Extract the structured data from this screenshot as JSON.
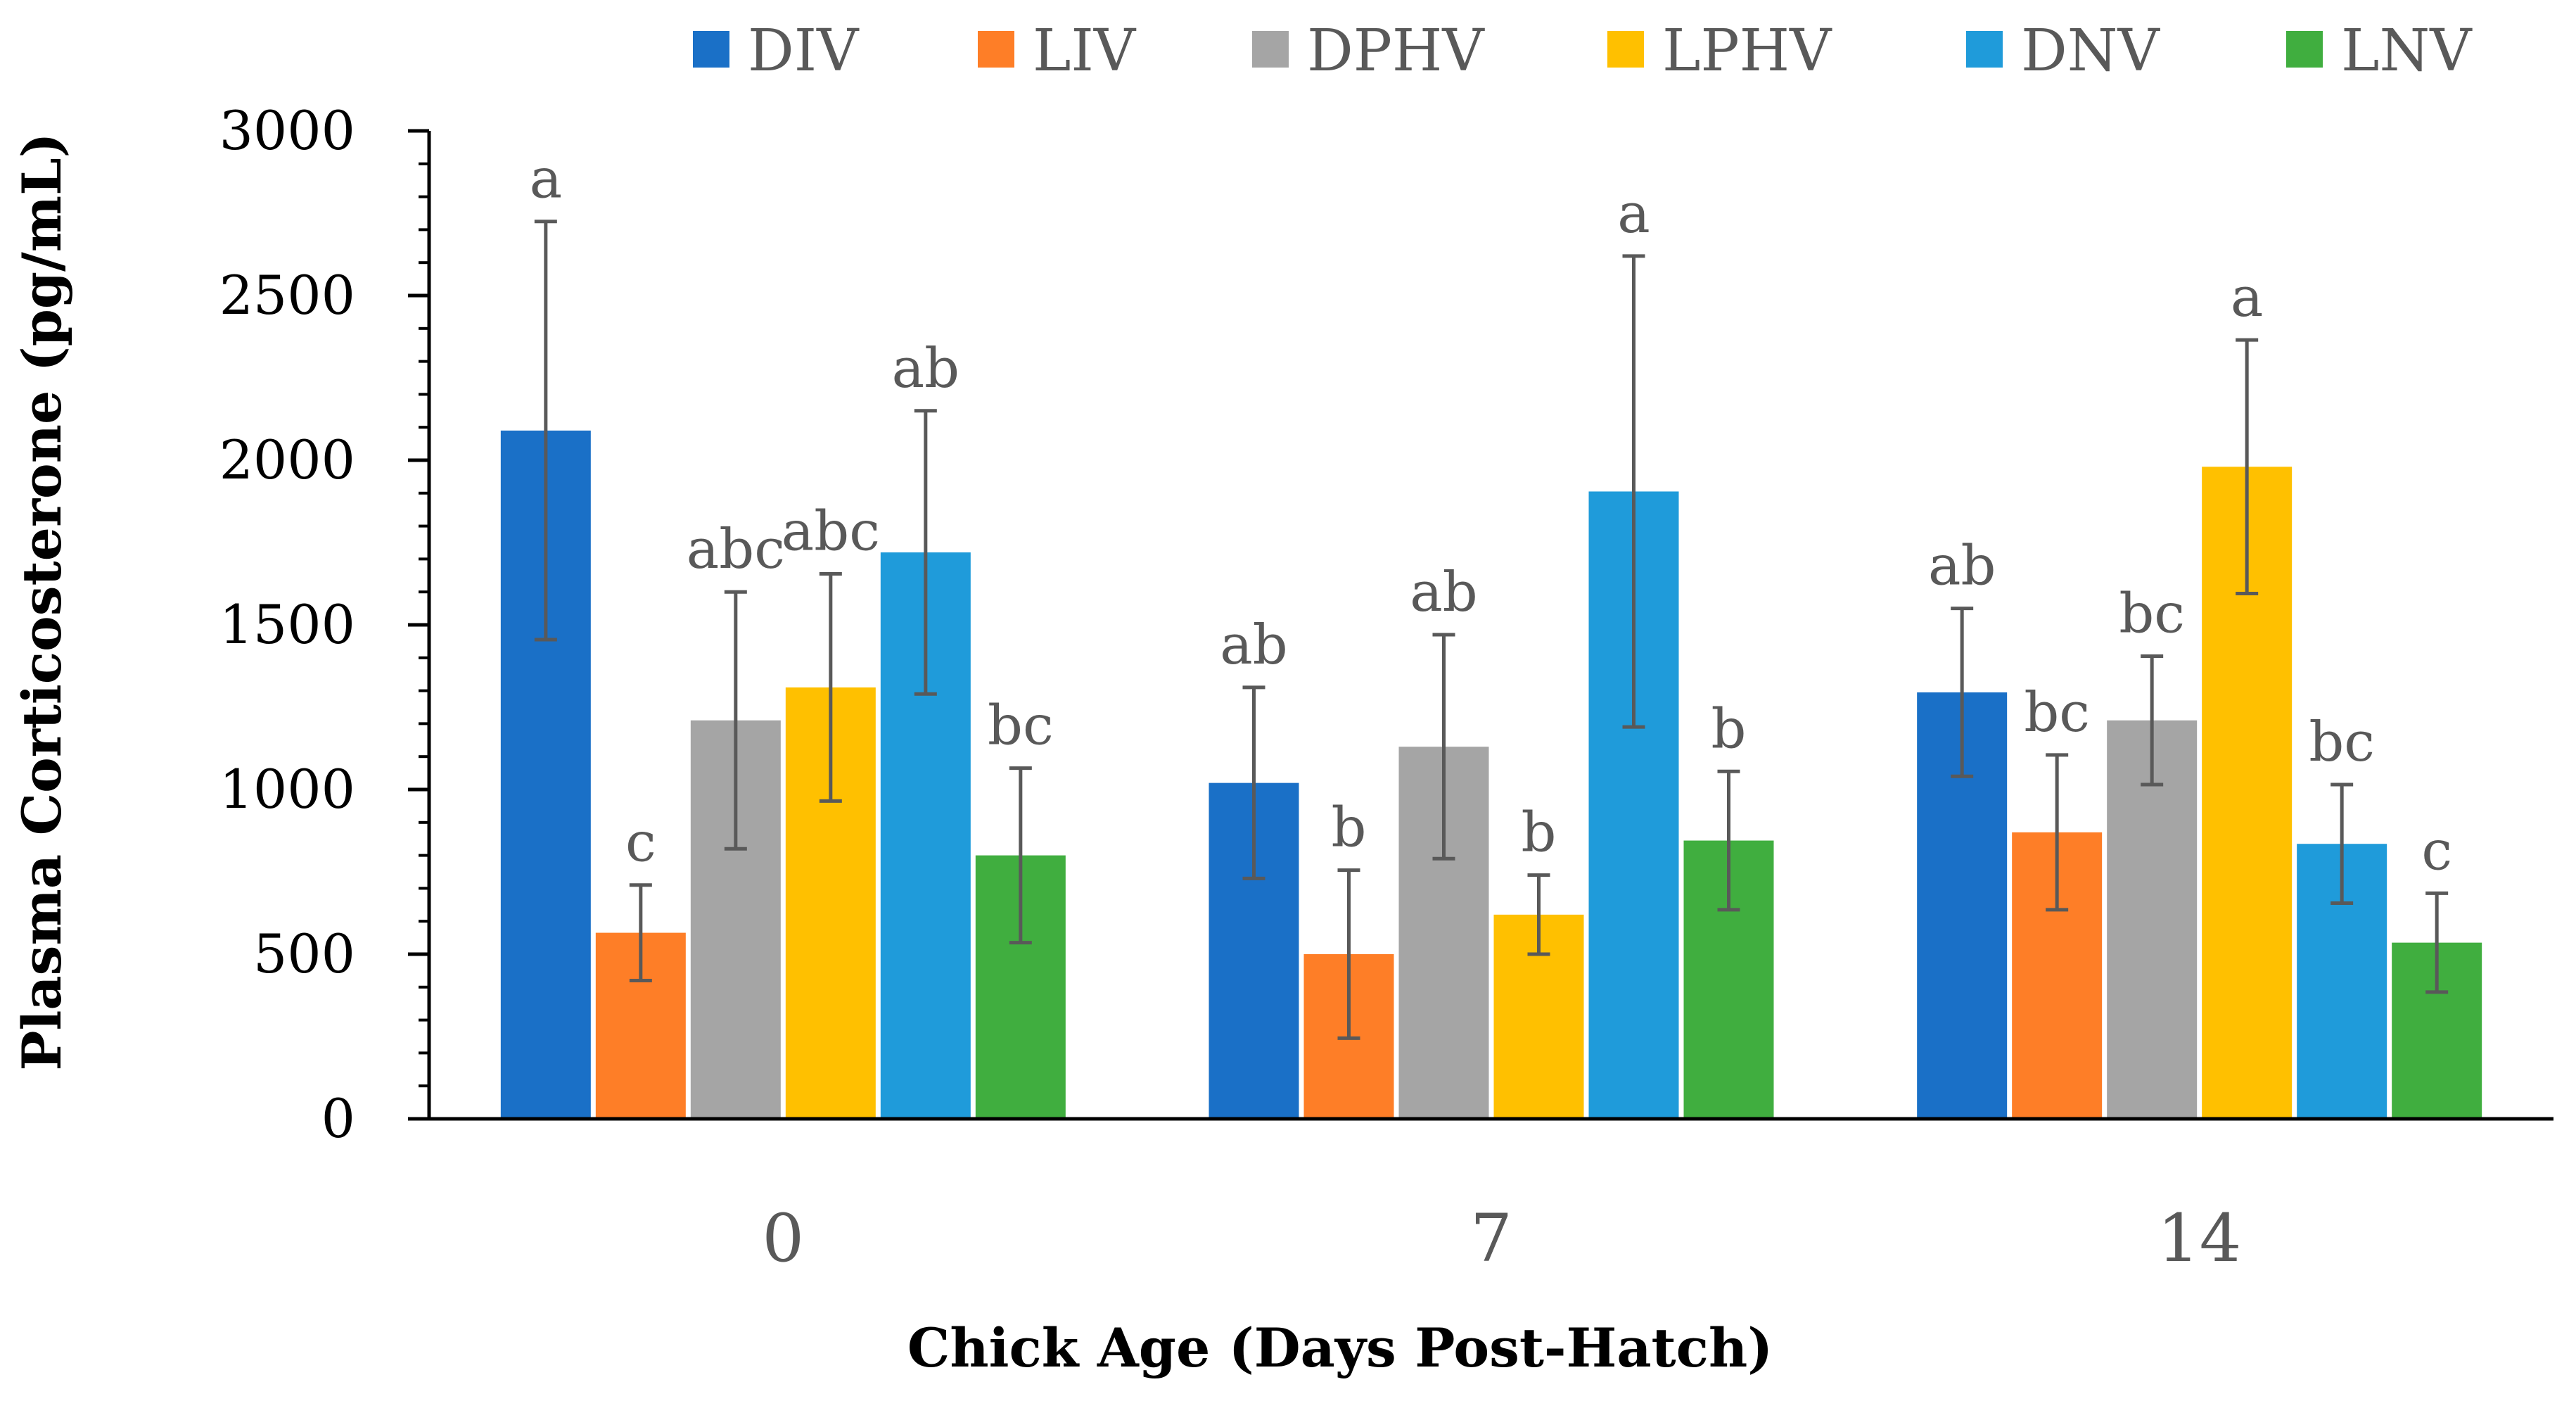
{
  "chart_data": {
    "type": "bar",
    "title": "",
    "xlabel": "Chick Age (Days Post-Hatch)",
    "ylabel": "Plasma Corticosterone (pg/mL)",
    "ylim": [
      0,
      3000
    ],
    "yticks": [
      0,
      500,
      1000,
      1500,
      2000,
      2500,
      3000
    ],
    "ytick_labels": [
      "0",
      "500",
      "1000",
      "1500",
      "2000",
      "2500",
      "3000"
    ],
    "categories": [
      "0",
      "7",
      "14"
    ],
    "legend_position": "top",
    "series": [
      {
        "name": "DIV",
        "color": "#1a70c7",
        "values": [
          2090,
          1020,
          1295
        ],
        "errors": [
          635,
          290,
          255
        ],
        "labels": [
          "a",
          "ab",
          "ab"
        ]
      },
      {
        "name": "LIV",
        "color": "#fe7e27",
        "values": [
          565,
          500,
          870
        ],
        "errors": [
          145,
          255,
          235
        ],
        "labels": [
          "c",
          "b",
          "bc"
        ]
      },
      {
        "name": "DPHV",
        "color": "#a5a5a5",
        "values": [
          1210,
          1130,
          1210
        ],
        "errors": [
          390,
          340,
          195
        ],
        "labels": [
          "abc",
          "ab",
          "bc"
        ]
      },
      {
        "name": "LPHV",
        "color": "#ffc000",
        "values": [
          1310,
          620,
          1980
        ],
        "errors": [
          345,
          120,
          385
        ],
        "labels": [
          "abc",
          "b",
          "a"
        ]
      },
      {
        "name": "DNV",
        "color": "#1f9bda",
        "values": [
          1720,
          1905,
          835
        ],
        "errors": [
          430,
          715,
          180
        ],
        "labels": [
          "ab",
          "a",
          "bc"
        ]
      },
      {
        "name": "LNV",
        "color": "#40ae3f",
        "values": [
          800,
          845,
          535
        ],
        "errors": [
          265,
          210,
          150
        ],
        "labels": [
          "bc",
          "b",
          "c"
        ]
      }
    ]
  }
}
